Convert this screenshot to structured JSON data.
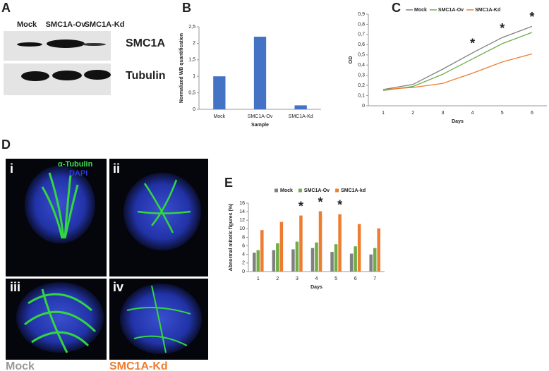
{
  "panels": {
    "A": {
      "letter": "A",
      "lanes": [
        "Mock",
        "SMC1A-Ov",
        "SMC1A-Kd"
      ],
      "rows": [
        "SMC1A",
        "Tubulin"
      ]
    },
    "D": {
      "letter": "D",
      "labels": [
        "i",
        "ii",
        "iii",
        "iv"
      ],
      "stains": [
        "α-Tubulin",
        "DAPI"
      ],
      "conditions": [
        "Mock",
        "SMC1A-Kd"
      ]
    }
  },
  "chart_data": [
    {
      "type": "bar",
      "panel_label": "B",
      "x_label": "Sample",
      "y_label": "Normalized WB quantification",
      "categories": [
        "Mock",
        "SMC1A-Ov",
        "SMC1A-Kd"
      ],
      "values": [
        1,
        2.2,
        0.12
      ],
      "color": "#4472c4",
      "ylim": [
        0,
        2.5
      ],
      "yticks": [
        0,
        {
          "value": 0.5,
          "label": "0,5"
        },
        1,
        {
          "value": 1.5,
          "label": "1,5"
        },
        2,
        {
          "value": 2.5,
          "label": "2,5"
        }
      ]
    },
    {
      "type": "line",
      "panel_label": "C",
      "x_label": "Days",
      "y_label": "OD",
      "categories": [
        "1",
        "2",
        "3",
        "4",
        "5",
        "6"
      ],
      "series": [
        {
          "name": "Mock",
          "color": "#808080",
          "values": [
            0.16,
            0.21,
            0.36,
            0.52,
            0.67,
            0.78
          ]
        },
        {
          "name": "SMC1A-Ov",
          "color": "#70ad47",
          "values": [
            0.15,
            0.19,
            0.31,
            0.46,
            0.61,
            0.72
          ]
        },
        {
          "name": "SMC1A-Kd",
          "color": "#ed7d31",
          "values": [
            0.16,
            0.18,
            0.22,
            0.32,
            0.43,
            0.51
          ]
        }
      ],
      "ylim": [
        0,
        0.9
      ],
      "yticks": [
        0,
        {
          "value": 0.1,
          "label": "0,1"
        },
        {
          "value": 0.2,
          "label": "0,2"
        },
        {
          "value": 0.3,
          "label": "0,3"
        },
        {
          "value": 0.4,
          "label": "0,4"
        },
        {
          "value": 0.5,
          "label": "0,5"
        },
        {
          "value": 0.6,
          "label": "0,6"
        },
        {
          "value": 0.7,
          "label": "0,7"
        },
        {
          "value": 0.8,
          "label": "0,8"
        },
        {
          "value": 0.9,
          "label": "0,9"
        }
      ],
      "legend": "top",
      "annotations": [
        {
          "text": "*",
          "x": "4"
        },
        {
          "text": "*",
          "x": "5"
        },
        {
          "text": "*",
          "x": "6"
        }
      ]
    },
    {
      "type": "bar",
      "panel_label": "E",
      "x_label": "Days",
      "y_label": "Abnormal mitotic figures (%)",
      "categories": [
        "1",
        "2",
        "3",
        "4",
        "5",
        "6",
        "7"
      ],
      "series": [
        {
          "name": "Mock",
          "color": "#808080",
          "values": [
            4.4,
            5,
            5.2,
            5.5,
            4.6,
            4.2,
            4.0
          ]
        },
        {
          "name": "SMC1A-Ov",
          "color": "#70ad47",
          "values": [
            5,
            6.6,
            7,
            6.8,
            6.4,
            5.9,
            5.5
          ]
        },
        {
          "name": "SMC1A-kd",
          "color": "#ed7d31",
          "values": [
            9.7,
            11.6,
            13.1,
            14.1,
            13.4,
            11.1,
            10.1
          ]
        }
      ],
      "ylim": [
        0,
        16
      ],
      "yticks": [
        0,
        2,
        4,
        6,
        8,
        10,
        12,
        14,
        16
      ],
      "legend": "top",
      "annotations": [
        {
          "text": "*",
          "x": "3"
        },
        {
          "text": "*",
          "x": "4"
        },
        {
          "text": "*",
          "x": "5"
        }
      ]
    }
  ]
}
